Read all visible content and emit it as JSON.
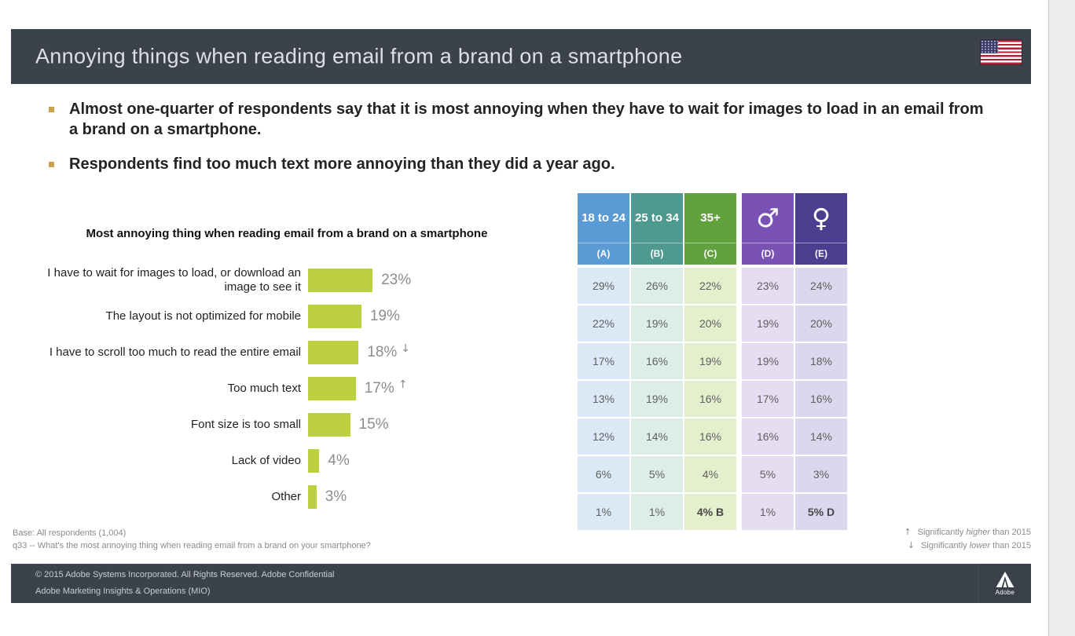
{
  "slide": {
    "title": "Annoying things when reading email from a brand on a smartphone",
    "bullets": [
      "Almost one-quarter of respondents say that it is most annoying when they have to wait for images to load in an email from a brand on a smartphone.",
      "Respondents find too much text more annoying than they did a year ago."
    ],
    "footnotes": {
      "base": "Base:  All respondents    (1,004)",
      "question": "q33  -- What's  the  most  annoying   thing  when  reading   email  from  a brand  on  your  smartphone?"
    },
    "significance": [
      {
        "arrow": "↑",
        "pre": "Significantly",
        "em": "higher",
        "post": "than 2015"
      },
      {
        "arrow": "↓",
        "pre": "Significantly",
        "em": "lower",
        "post": "than 2015"
      }
    ],
    "footer": {
      "copyright": "© 2015 Adobe Systems Incorporated.  All Rights Reserved.  Adobe Confidential",
      "org": "Adobe  Marketing  Insights  &  Operations   (MIO)",
      "logo_label": "Adobe"
    },
    "flag": "us-flag"
  },
  "chart_data": [
    {
      "type": "bar",
      "orientation": "horizontal",
      "title": "Most annoying thing when reading email from a brand on a smartphone",
      "categories": [
        "I have to wait for images to load, or download an image to see it",
        "The layout is not optimized for mobile",
        "I have to scroll too much to read the entire email",
        "Too much text",
        "Font size is too small",
        "Lack of video",
        "Other"
      ],
      "values": [
        23,
        19,
        18,
        17,
        15,
        4,
        3
      ],
      "value_labels": [
        "23%",
        "19%",
        "18%",
        "17%",
        "15%",
        "4%",
        "3%"
      ],
      "markers": [
        "",
        "",
        "↓",
        "↑",
        "",
        "",
        ""
      ],
      "bar_color": "#bdd03f",
      "xlim": [
        0,
        25
      ],
      "grid": false,
      "legend": false
    },
    {
      "type": "table",
      "columns": [
        {
          "label": "18 to 24",
          "letter": "(A)",
          "header_color": "#5b9bd5",
          "body_color": "#dbe9f6",
          "icon": ""
        },
        {
          "label": "25 to 34",
          "letter": "(B)",
          "header_color": "#4f9a8e",
          "body_color": "#ddeee8",
          "icon": ""
        },
        {
          "label": "35+",
          "letter": "(C)",
          "header_color": "#61a23f",
          "body_color": "#e5eecd",
          "icon": ""
        },
        {
          "label": "♂",
          "letter": "(D)",
          "header_color": "#7a52b5",
          "body_color": "#e7ddf2",
          "icon": "male"
        },
        {
          "label": "♀",
          "letter": "(E)",
          "header_color": "#4c3d8f",
          "body_color": "#dcd7ec",
          "icon": "female"
        }
      ],
      "rows": [
        [
          "29%",
          "26%",
          "22%",
          "23%",
          "24%"
        ],
        [
          "22%",
          "19%",
          "20%",
          "19%",
          "20%"
        ],
        [
          "17%",
          "16%",
          "19%",
          "19%",
          "18%"
        ],
        [
          "13%",
          "19%",
          "16%",
          "17%",
          "16%"
        ],
        [
          "12%",
          "14%",
          "16%",
          "16%",
          "14%"
        ],
        [
          "6%",
          "5%",
          "4%",
          "5%",
          "3%"
        ],
        [
          "1%",
          "1%",
          "4% B",
          "1%",
          "5% D"
        ]
      ]
    }
  ]
}
